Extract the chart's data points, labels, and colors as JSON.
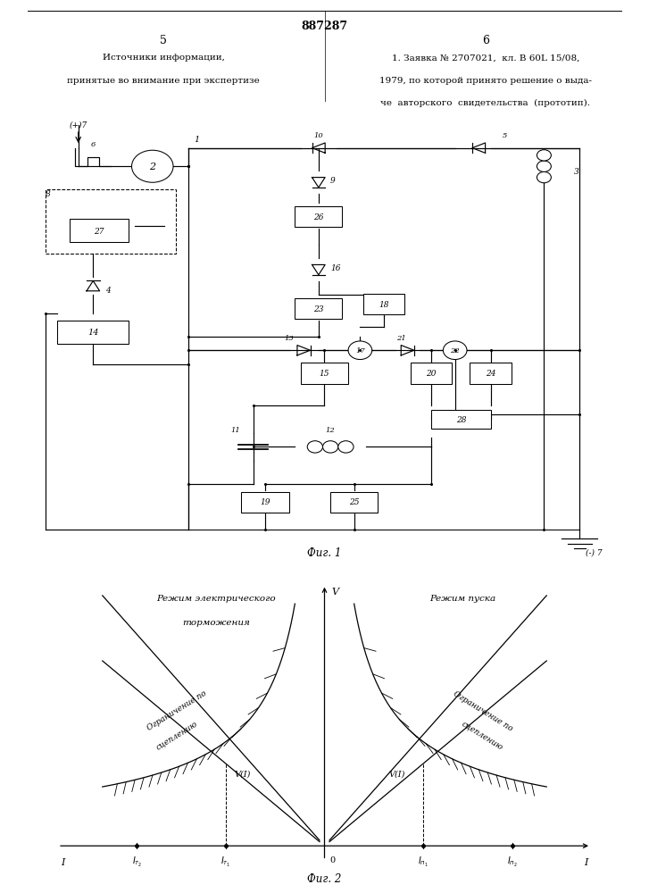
{
  "title": "887287",
  "col_left_num": "5",
  "col_right_num": "6",
  "col_left_text_line1": "Источники информации,",
  "col_left_text_line2": "принятые во внимание при экспертизе",
  "col_right_text_line1": "1. Заявка № 2707021,  кл. В 60L 15/08,",
  "col_right_text_line2": "1979, по которой принято решение о выда-",
  "col_right_text_line3": "че  авторского  свидетельства  (прототип).",
  "fig1_caption": "Фиг. 1",
  "fig2_caption": "Фиг. 2",
  "graph_left_label_line1": "Режим электрического",
  "graph_left_label_line2": "торможения",
  "graph_right_label": "Режим пуска",
  "graph_left_curve_label_line1": "Ограничение по",
  "graph_left_curve_label_line2": "сцеплению",
  "graph_right_curve_label_line1": "Ограничение по",
  "graph_right_curve_label_line2": "сцеплению",
  "line_color": "#000000",
  "bg_color": "#ffffff"
}
